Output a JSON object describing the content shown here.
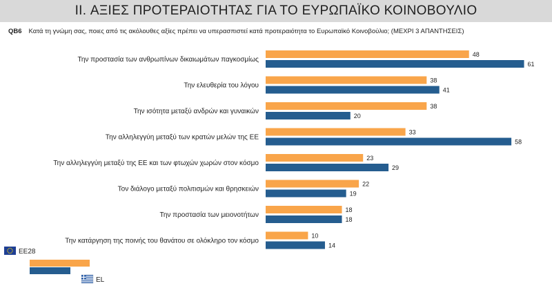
{
  "header": {
    "title": "II. ΑΞΙΕΣ ΠΡΟΤΕΡΑΙΟΤΗΤΑΣ ΓΙΑ ΤΟ ΕΥΡΩΠΑΪΚΟ ΚΟΙΝΟΒΟΥΛΙΟ"
  },
  "question": {
    "code": "QB6",
    "text": "Κατά τη γνώμη σας, ποιες από τις ακόλουθες αξίες πρέπει να υπερασπιστεί κατά προτεραιότητα το Ευρωπαϊκό Κοινοβούλιο; (ΜΕΧΡΙ 3 ΑΠΑΝΤΗΣΕΙΣ)"
  },
  "colors": {
    "eu28": "#f9a54a",
    "el": "#255d8f",
    "eu_flag": "#1f3f94",
    "gr_flag": "#2e5fa8"
  },
  "chart_data": {
    "type": "bar",
    "orientation": "horizontal",
    "categories": [
      "Την προστασία των ανθρωπίνων δικαιωμάτων παγκοσμίως",
      "Την ελευθερία του λόγου",
      "Την ισότητα μεταξύ ανδρών και γυναικών",
      "Την αλληλεγγύη μεταξύ των κρατών μελών της ΕΕ",
      "Την αλληλεγγύη μεταξύ της ΕΕ και των φτωχών χωρών στον κόσμο",
      "Τον διάλογο μεταξύ πολιτισμών και θρησκειών",
      "Την προστασία των μειονοτήτων",
      "Την κατάργηση της ποινής του θανάτου σε ολόκληρο τον κόσμο"
    ],
    "series": [
      {
        "name": "ΕΕ28",
        "values": [
          48,
          38,
          38,
          33,
          23,
          22,
          18,
          10
        ]
      },
      {
        "name": "EL",
        "values": [
          61,
          41,
          20,
          58,
          29,
          19,
          18,
          14
        ]
      }
    ],
    "xlim": [
      0,
      100
    ],
    "legend": "bottom-left",
    "grid": false
  }
}
